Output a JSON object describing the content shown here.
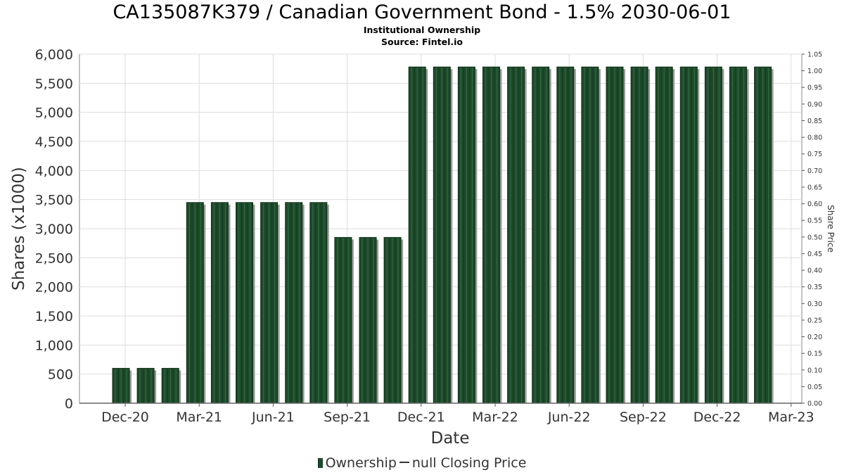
{
  "header": {
    "title": "CA135087K379 / Canadian Government Bond - 1.5% 2030-06-01",
    "subtitle": "Institutional Ownership",
    "source": "Source: Fintel.io"
  },
  "legend": {
    "ownership": "Ownership",
    "price": "null Closing Price"
  },
  "colors": {
    "bar": "#1d4a2a",
    "bar_dark": "#0f2d17",
    "shadow": "#9a9a9a",
    "grid": "#dddddd",
    "axis": "#555555"
  },
  "chart_data": {
    "type": "bar",
    "title": "CA135087K379 / Canadian Government Bond - 1.5% 2030-06-01",
    "subtitle": "Institutional Ownership",
    "xlabel": "Date",
    "ylabel": "Shares (x1000)",
    "y2label": "Share Price",
    "x_ticks": [
      "Dec-20",
      "Mar-21",
      "Jun-21",
      "Sep-21",
      "Dec-21",
      "Mar-22",
      "Jun-22",
      "Sep-22",
      "Dec-22",
      "Mar-23"
    ],
    "y_ticks": [
      "0",
      "500",
      "1,000",
      "1,500",
      "2,000",
      "2,500",
      "3,000",
      "3,500",
      "4,000",
      "4,500",
      "5,000",
      "5,500",
      "6,000"
    ],
    "y2_ticks": [
      "0.00",
      "0.05",
      "0.10",
      "0.15",
      "0.20",
      "0.25",
      "0.30",
      "0.35",
      "0.40",
      "0.45",
      "0.50",
      "0.55",
      "0.60",
      "0.65",
      "0.70",
      "0.75",
      "0.80",
      "0.85",
      "0.90",
      "0.95",
      "1.00",
      "1.05"
    ],
    "ylim": [
      0,
      6000
    ],
    "y2lim": [
      0,
      1.05
    ],
    "grid": true,
    "legend_position": "bottom",
    "series": [
      {
        "name": "Ownership",
        "values": [
          600,
          600,
          600,
          3450,
          3450,
          3450,
          3450,
          3450,
          3450,
          2850,
          2850,
          2850,
          5780,
          5780,
          5780,
          5780,
          5780,
          5780,
          5780,
          5780,
          5780,
          5780,
          5780,
          5780,
          5780,
          5780,
          5780
        ]
      }
    ]
  }
}
